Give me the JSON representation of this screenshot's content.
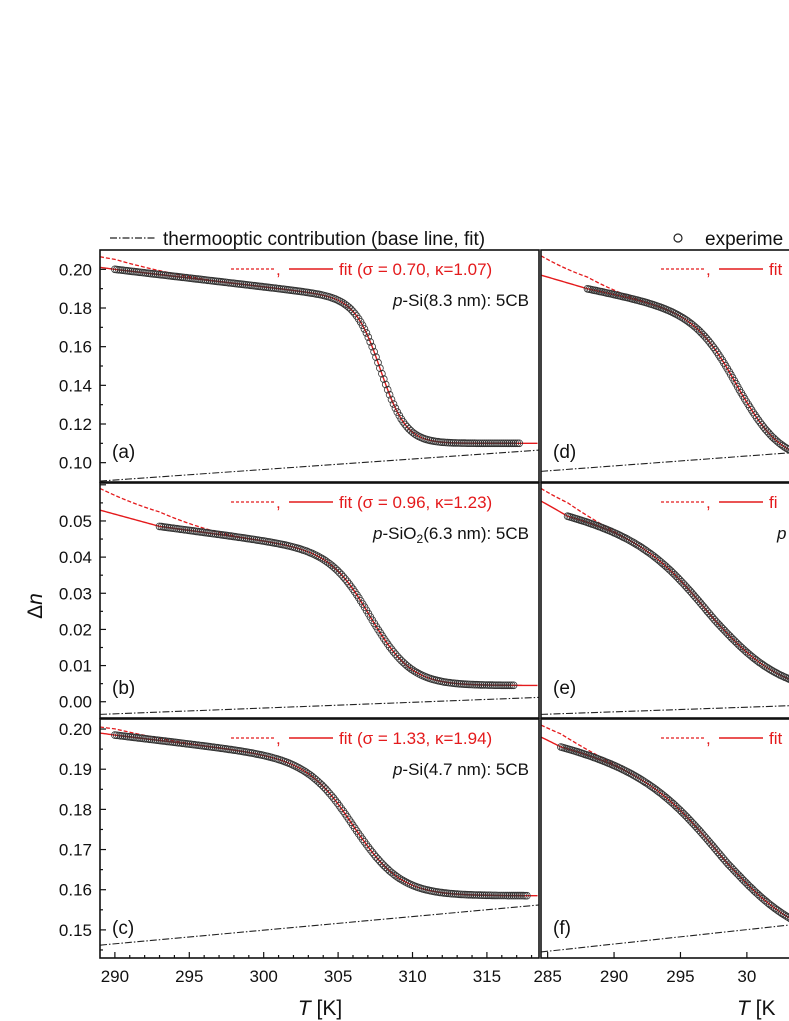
{
  "chart_data": {
    "type": "line",
    "legend": {
      "placement": "top",
      "baseline_text": "thermooptic contribution  (base line, fit)",
      "experiment_text": "experime"
    },
    "colors": {
      "fit": "#e41a1c",
      "data": "#333333",
      "baseline": "#222222"
    },
    "axes": {
      "ylabel": "Δn",
      "ylabel_parts": [
        "Δ",
        "n"
      ],
      "xlabel_left": {
        "var": "T",
        "unit": " [K]"
      },
      "xlabel_right": {
        "var": "T",
        "unit": " [K"
      },
      "x_left": {
        "range": [
          289,
          318.5
        ],
        "ticks": [
          290,
          295,
          300,
          305,
          310,
          315
        ]
      },
      "x_right": {
        "range": [
          284.5,
          304
        ]
      }
    },
    "panels": [
      {
        "id": "a",
        "label": "(a)",
        "column": "left",
        "row": 0,
        "sample": {
          "prefix": "p",
          "rest": "-Si(8.3 nm): 5CB"
        },
        "fit_legend": {
          "mid": ",",
          "text": "fit (σ = 0.70, κ=1.07)"
        },
        "ylim": [
          0.09,
          0.21
        ],
        "yticks": [
          0.1,
          0.12,
          0.14,
          0.16,
          0.18,
          0.2
        ],
        "ytick_labels": [
          "0.10",
          "0.12",
          "0.14",
          "0.16",
          "0.18",
          "0.20"
        ],
        "transition": {
          "A": 0.09,
          "B": 0.2,
          "Tc": 307.9,
          "w": 0.85,
          "x0": 290,
          "xend": 317.2
        },
        "baseline": {
          "y0": 0.0905,
          "y1": 0.1065
        },
        "fit_solid_start": 0.201,
        "fit_dash_start": 0.2065,
        "data_start": 290
      },
      {
        "id": "b",
        "label": "(b)",
        "column": "left",
        "row": 1,
        "sample": {
          "prefix": "p",
          "rest": "-SiO2(6.3 nm): 5CB",
          "pre": "-SiO",
          "sub": "2",
          "post": "(6.3 nm): 5CB"
        },
        "fit_legend": {
          "mid": ",",
          "text": "fit (σ = 0.96, κ=1.23)"
        },
        "ylim": [
          -0.0045,
          0.0605
        ],
        "yticks": [
          0.0,
          0.01,
          0.02,
          0.03,
          0.04,
          0.05
        ],
        "ytick_labels": [
          "0.00",
          "0.01",
          "0.02",
          "0.03",
          "0.04",
          "0.05"
        ],
        "transition": {
          "A": 0.044,
          "B": 0.0485,
          "Tc": 307.3,
          "w": 1.35,
          "x0": 293,
          "xend": 316.8
        },
        "baseline": {
          "y0": -0.0035,
          "y1": 0.0012
        },
        "fit_solid_start": 0.053,
        "fit_dash_start": 0.059,
        "data_start": 293
      },
      {
        "id": "c",
        "label": "(c)",
        "column": "left",
        "row": 2,
        "sample": {
          "prefix": "p",
          "rest": "-Si(4.7 nm): 5CB"
        },
        "fit_legend": {
          "mid": ",",
          "text": "fit (σ = 1.33, κ=1.94)"
        },
        "ylim": [
          0.143,
          0.2025
        ],
        "yticks": [
          0.15,
          0.16,
          0.17,
          0.18,
          0.19,
          0.2
        ],
        "ytick_labels": [
          "0.15",
          "0.16",
          "0.17",
          "0.18",
          "0.19",
          "0.20"
        ],
        "transition": {
          "A": 0.04,
          "B": 0.1985,
          "Tc": 306.2,
          "w": 1.55,
          "x0": 290,
          "xend": 317.8
        },
        "baseline": {
          "y0": 0.1462,
          "y1": 0.1562
        },
        "fit_solid_start": 0.199,
        "fit_dash_start": 0.2005,
        "data_start": 290
      },
      {
        "id": "d",
        "label": "(d)",
        "column": "right",
        "row": 0,
        "fit_legend": {
          "mid": ",",
          "text": "fit"
        },
        "ylim": [
          0.09,
          0.21
        ],
        "transition": {
          "A": 0.09,
          "B": 0.19,
          "Tc": 299.5,
          "w": 1.6,
          "x0": 288,
          "xend": 304
        },
        "baseline": {
          "y0": 0.0955,
          "y1": 0.1055
        },
        "fit_solid_start": 0.197,
        "fit_dash_start": 0.207,
        "data_start": 288
      },
      {
        "id": "e",
        "label": "(e)",
        "column": "right",
        "row": 1,
        "sample": {
          "prefix": "p",
          "rest": ""
        },
        "fit_legend": {
          "mid": ",",
          "text": "fi"
        },
        "ylim": [
          -0.0045,
          0.0605
        ],
        "transition": {
          "A": 0.05,
          "B": 0.052,
          "Tc": 297.6,
          "w": 2.6,
          "x0": 286.5,
          "xend": 304
        },
        "baseline": {
          "y0": -0.0035,
          "y1": -0.001
        },
        "fit_solid_start": 0.0555,
        "fit_dash_start": 0.059,
        "data_start": 286.5
      },
      {
        "id": "f",
        "label": "(f)",
        "column": "right",
        "row": 2,
        "fit_legend": {
          "mid": ",",
          "text": "fit"
        },
        "ylim": [
          0.143,
          0.2025
        ],
        "transition": {
          "A": 0.05,
          "B": 0.1962,
          "Tc": 298.5,
          "w": 2.9,
          "x0": 286,
          "xend": 304
        },
        "baseline": {
          "y0": 0.1445,
          "y1": 0.1515
        },
        "fit_solid_start": 0.198,
        "fit_dash_start": 0.201,
        "data_start": 286
      }
    ]
  }
}
